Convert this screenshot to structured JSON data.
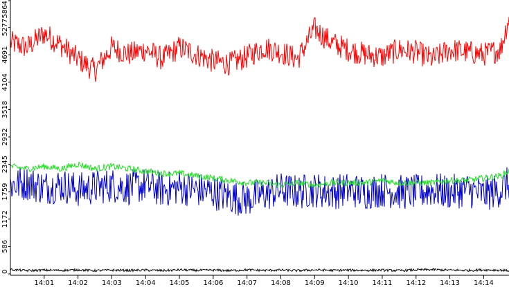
{
  "chart_data": {
    "type": "line",
    "title": "",
    "xlabel": "",
    "ylabel": "",
    "grid": false,
    "legend": "none",
    "x_range": [
      "14:00",
      "14:14:45"
    ],
    "ylim": [
      0,
      5864
    ],
    "y_ticks": [
      "0",
      "586",
      "1172",
      "1759",
      "2345",
      "2932",
      "3518",
      "4104",
      "4691",
      "5277",
      "5864"
    ],
    "x_ticks": [
      "14:01",
      "14:02",
      "14:03",
      "14:04",
      "14:05",
      "14:06",
      "14:07",
      "14:08",
      "14:09",
      "14:10",
      "14:11",
      "14:12",
      "14:13",
      "14:14"
    ],
    "series": [
      {
        "color": "#ff0000",
        "x": [
          "14:00",
          "14:00:30",
          "14:01",
          "14:01:30",
          "14:02",
          "14:02:30",
          "14:03",
          "14:03:30",
          "14:04",
          "14:04:30",
          "14:05",
          "14:05:30",
          "14:06",
          "14:06:30",
          "14:07",
          "14:07:30",
          "14:08",
          "14:08:30",
          "14:09",
          "14:09:30",
          "14:10",
          "14:10:30",
          "14:11",
          "14:11:30",
          "14:12",
          "14:12:30",
          "14:13",
          "14:13:30",
          "14:14",
          "14:14:30",
          "14:14:45"
        ],
        "values": [
          4950,
          4850,
          5150,
          4900,
          4600,
          4350,
          4850,
          4700,
          4800,
          4600,
          4850,
          4700,
          4550,
          4500,
          4650,
          4850,
          4750,
          4600,
          5250,
          4950,
          4800,
          4700,
          4650,
          4800,
          4750,
          4600,
          4800,
          4750,
          4700,
          4800,
          5500
        ]
      },
      {
        "color": "#0000cc",
        "x": [
          "14:00",
          "14:00:30",
          "14:01",
          "14:01:30",
          "14:02",
          "14:02:30",
          "14:03",
          "14:03:30",
          "14:04",
          "14:04:30",
          "14:05",
          "14:05:30",
          "14:06",
          "14:06:30",
          "14:07",
          "14:07:30",
          "14:08",
          "14:08:30",
          "14:09",
          "14:09:30",
          "14:10",
          "14:10:30",
          "14:11",
          "14:11:30",
          "14:12",
          "14:12:30",
          "14:13",
          "14:13:30",
          "14:14",
          "14:14:30",
          "14:14:45"
        ],
        "values": [
          1900,
          1950,
          1850,
          1900,
          1800,
          1850,
          1900,
          1850,
          1900,
          1800,
          1850,
          1800,
          1750,
          1650,
          1600,
          1700,
          1800,
          1750,
          1800,
          1750,
          1800,
          1750,
          1800,
          1750,
          1750,
          1800,
          1750,
          1800,
          1700,
          1800,
          1950
        ]
      },
      {
        "color": "#22dd22",
        "x": [
          "14:00",
          "14:00:30",
          "14:01",
          "14:01:30",
          "14:02",
          "14:02:30",
          "14:03",
          "14:03:30",
          "14:04",
          "14:04:30",
          "14:05",
          "14:05:30",
          "14:06",
          "14:06:30",
          "14:07",
          "14:07:30",
          "14:08",
          "14:08:30",
          "14:09",
          "14:09:30",
          "14:10",
          "14:10:30",
          "14:11",
          "14:11:30",
          "14:12",
          "14:12:30",
          "14:13",
          "14:13:30",
          "14:14",
          "14:14:30",
          "14:14:45"
        ],
        "values": [
          2300,
          2250,
          2300,
          2250,
          2350,
          2250,
          2300,
          2250,
          2200,
          2150,
          2150,
          2100,
          2050,
          2000,
          1950,
          1950,
          1900,
          1950,
          1900,
          1950,
          1950,
          1950,
          2000,
          1950,
          1950,
          1950,
          2000,
          2000,
          2050,
          2100,
          2200
        ]
      },
      {
        "color": "#000000",
        "x": [
          "14:00",
          "14:00:30",
          "14:01",
          "14:01:30",
          "14:02",
          "14:02:30",
          "14:03",
          "14:03:30",
          "14:04",
          "14:04:30",
          "14:05",
          "14:05:30",
          "14:06",
          "14:06:30",
          "14:07",
          "14:07:30",
          "14:08",
          "14:08:30",
          "14:09",
          "14:09:30",
          "14:10",
          "14:10:30",
          "14:11",
          "14:11:30",
          "14:12",
          "14:12:30",
          "14:13",
          "14:13:30",
          "14:14",
          "14:14:30",
          "14:14:45"
        ],
        "values": [
          90,
          70,
          80,
          75,
          85,
          70,
          80,
          75,
          80,
          70,
          85,
          75,
          80,
          70,
          85,
          75,
          80,
          70,
          85,
          75,
          80,
          75,
          80,
          70,
          85,
          90,
          80,
          75,
          85,
          80,
          70
        ]
      }
    ]
  }
}
